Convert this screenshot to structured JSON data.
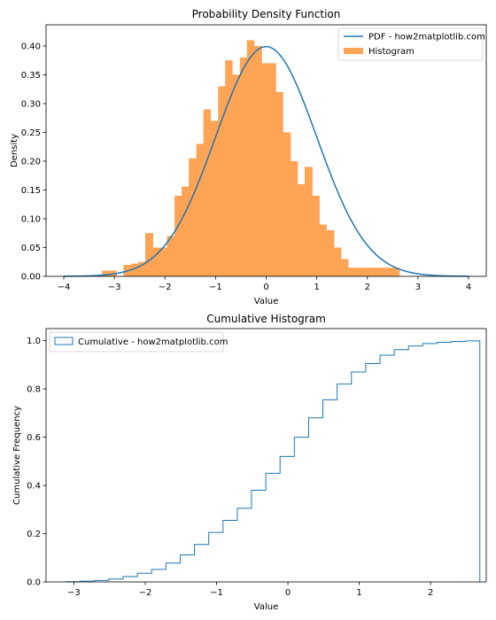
{
  "chart_data": [
    {
      "type": "bar",
      "title": "Probability Density Function",
      "xlabel": "Value",
      "ylabel": "Density",
      "xlim": [
        -4.35,
        4.35
      ],
      "ylim": [
        0,
        0.4368
      ],
      "xticks": [
        -4,
        -3,
        -2,
        -1,
        0,
        1,
        2,
        3,
        4
      ],
      "yticks": [
        0.0,
        0.05,
        0.1,
        0.15,
        0.2,
        0.25,
        0.3,
        0.35,
        0.4
      ],
      "legend_position": "upper right",
      "colors": {
        "histogram": "#ffa354",
        "pdf": "#1f77b4"
      },
      "histogram": {
        "name": "Histogram",
        "bin_edges": [
          -3.24,
          -2.96,
          -2.82,
          -2.67,
          -2.53,
          -2.39,
          -2.24,
          -2.1,
          -1.96,
          -1.81,
          -1.67,
          -1.53,
          -1.38,
          -1.24,
          -1.1,
          -0.95,
          -0.81,
          -0.67,
          -0.52,
          -0.38,
          -0.24,
          -0.09,
          0.05,
          0.19,
          0.33,
          0.48,
          0.62,
          0.76,
          0.91,
          1.05,
          1.19,
          1.34,
          1.48,
          1.62,
          1.77,
          1.91,
          2.05,
          2.2,
          2.34,
          2.48,
          2.63
        ],
        "values": [
          0.01,
          0.0,
          0.02,
          0.022,
          0.025,
          0.075,
          0.05,
          0.05,
          0.07,
          0.14,
          0.156,
          0.205,
          0.23,
          0.29,
          0.27,
          0.33,
          0.375,
          0.35,
          0.38,
          0.41,
          0.4,
          0.37,
          0.37,
          0.32,
          0.25,
          0.2,
          0.16,
          0.19,
          0.14,
          0.09,
          0.08,
          0.05,
          0.03,
          0.015,
          0.015,
          0.015,
          0.015,
          0.015,
          0.015,
          0.015
        ]
      },
      "pdf": {
        "name": "PDF - how2matplotlib.com",
        "x_range": [
          -4,
          4
        ],
        "mean": 0,
        "std": 1
      }
    },
    {
      "type": "line",
      "title": "Cumulative Histogram",
      "xlabel": "Value",
      "ylabel": "Cumulative Frequency",
      "xlim": [
        -3.39,
        2.78
      ],
      "ylim": [
        0,
        1.05
      ],
      "xticks": [
        -3,
        -2,
        -1,
        0,
        1,
        2
      ],
      "yticks": [
        0.0,
        0.2,
        0.4,
        0.6,
        0.8,
        1.0
      ],
      "legend_position": "upper left",
      "colors": {
        "step": "#1f77b4"
      },
      "series": {
        "name": "Cumulative - how2matplotlib.com",
        "bin_edges": [
          -3.11,
          -2.91,
          -2.71,
          -2.51,
          -2.31,
          -2.11,
          -1.91,
          -1.71,
          -1.51,
          -1.31,
          -1.11,
          -0.91,
          -0.71,
          -0.51,
          -0.31,
          -0.11,
          0.09,
          0.29,
          0.49,
          0.69,
          0.89,
          1.09,
          1.29,
          1.49,
          1.69,
          1.89,
          2.09,
          2.29,
          2.49,
          2.69
        ],
        "values": [
          0.001,
          0.003,
          0.006,
          0.012,
          0.022,
          0.036,
          0.052,
          0.078,
          0.112,
          0.155,
          0.205,
          0.255,
          0.305,
          0.38,
          0.45,
          0.52,
          0.6,
          0.68,
          0.755,
          0.82,
          0.87,
          0.905,
          0.94,
          0.963,
          0.978,
          0.988,
          0.993,
          0.997,
          0.999
        ]
      }
    }
  ]
}
